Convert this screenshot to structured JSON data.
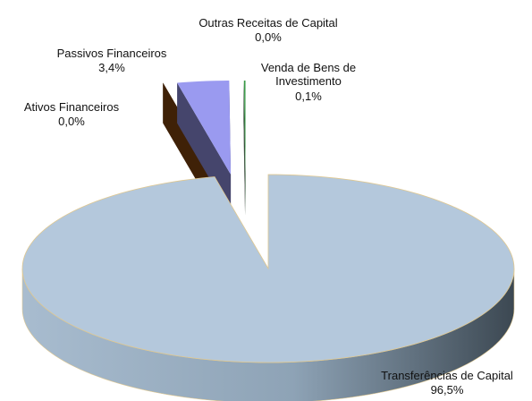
{
  "chart_data": {
    "type": "pie3d",
    "categories": [
      "Transferências de Capital",
      "Ativos Financeiros",
      "Passivos Financeiros",
      "Outras Receitas de Capital",
      "Venda de Bens de Investimento"
    ],
    "values": [
      96.5,
      0.0,
      3.4,
      0.0,
      0.1
    ],
    "value_labels": [
      "96,5%",
      "0,0%",
      "3,4%",
      "0,0%",
      "0,1%"
    ],
    "colors": [
      "#b4c8dc",
      "#8b4a10",
      "#9a9af0",
      "#ffffff",
      "#3a9a48"
    ]
  }
}
